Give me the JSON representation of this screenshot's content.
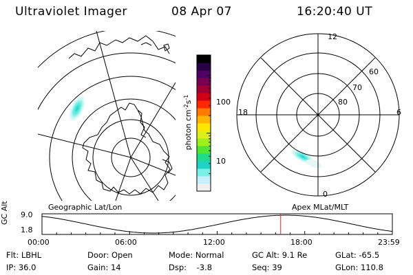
{
  "header": {
    "title": "Ultraviolet Imager",
    "date": "08 Apr 07",
    "time": "16:20:40 UT"
  },
  "colorbar": {
    "label_base": "photon cm",
    "label_exp1": "-2",
    "label_mid": "s",
    "label_exp2": "-1",
    "ticks": [
      {
        "value": 100,
        "text": "100"
      },
      {
        "value": 10,
        "text": "10"
      }
    ],
    "scale": "log",
    "colors": [
      "#f0f0f0",
      "#c8f0ff",
      "#7af0e6",
      "#1ed2c8",
      "#1edc8c",
      "#50e632",
      "#a0f01e",
      "#dcf01e",
      "#ffe600",
      "#ffb400",
      "#ff7800",
      "#ff2800",
      "#d20014",
      "#a00032",
      "#780050",
      "#500064",
      "#280046",
      "#000000"
    ]
  },
  "left_panel": {
    "caption": "Geographic Lat/Lon",
    "projection": "polar stereographic, south pole",
    "emission": "auroral patch near 150 deg geographic longitude"
  },
  "right_panel": {
    "caption": "Apex MLat/MLT",
    "lat_labels": [
      "60",
      "70",
      "80"
    ],
    "mlt_labels": [
      "12",
      "18",
      "6",
      "0"
    ]
  },
  "timeline": {
    "axis_label": "GC Alt",
    "y_ticks": [
      "9.0",
      "1.8"
    ],
    "x_ticks": [
      "00:00",
      "06:00",
      "12:00",
      "18:00",
      "23:59"
    ],
    "current_time_hours": 16.35
  },
  "status": {
    "filter": "Flt: LBHL",
    "door": "Door: Open",
    "mode": "Mode: Normal",
    "gc_alt": "GC Alt: 9.1 Re",
    "glat": "GLat: -65.5",
    "ip": "IP: 36.0",
    "gain": "Gain: 14",
    "dsp": "Dsp:    -3.8",
    "seq": "Seq: 39",
    "glon": "GLon: 110.8"
  }
}
